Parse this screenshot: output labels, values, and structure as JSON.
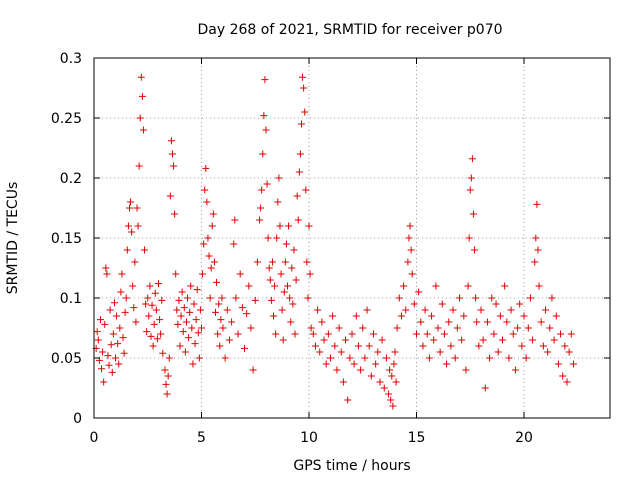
{
  "chart_data": {
    "type": "scatter",
    "title": "Day 268 of 2021, SRMTID for receiver p070",
    "xlabel": "GPS time / hours",
    "ylabel": "SRMTID / TECUs",
    "xlim": [
      0,
      24
    ],
    "ylim": [
      0,
      0.3
    ],
    "x_ticks": [
      "0",
      "5",
      "10",
      "15",
      "20"
    ],
    "y_ticks": [
      "0",
      "0.05",
      "0.1",
      "0.15",
      "0.2",
      "0.25",
      "0.3"
    ],
    "grid": true,
    "marker": "+",
    "series": [
      {
        "name": "SRMTID",
        "color": "#e00000",
        "points": [
          [
            0.1,
            0.058
          ],
          [
            0.15,
            0.072
          ],
          [
            0.2,
            0.065
          ],
          [
            0.25,
            0.048
          ],
          [
            0.3,
            0.082
          ],
          [
            0.35,
            0.041
          ],
          [
            0.4,
            0.055
          ],
          [
            0.45,
            0.03
          ],
          [
            0.5,
            0.078
          ],
          [
            0.55,
            0.125
          ],
          [
            0.6,
            0.12
          ],
          [
            0.65,
            0.052
          ],
          [
            0.7,
            0.044
          ],
          [
            0.75,
            0.09
          ],
          [
            0.8,
            0.061
          ],
          [
            0.85,
            0.038
          ],
          [
            0.9,
            0.07
          ],
          [
            0.95,
            0.096
          ],
          [
            1.0,
            0.05
          ],
          [
            1.05,
            0.085
          ],
          [
            1.1,
            0.062
          ],
          [
            1.15,
            0.045
          ],
          [
            1.2,
            0.075
          ],
          [
            1.25,
            0.105
          ],
          [
            1.3,
            0.12
          ],
          [
            1.35,
            0.067
          ],
          [
            1.4,
            0.054
          ],
          [
            1.45,
            0.088
          ],
          [
            1.5,
            0.1
          ],
          [
            1.55,
            0.14
          ],
          [
            1.6,
            0.16
          ],
          [
            1.65,
            0.175
          ],
          [
            1.7,
            0.18
          ],
          [
            1.75,
            0.155
          ],
          [
            1.8,
            0.11
          ],
          [
            1.85,
            0.092
          ],
          [
            1.9,
            0.13
          ],
          [
            1.95,
            0.08
          ],
          [
            2.0,
            0.175
          ],
          [
            2.05,
            0.16
          ],
          [
            2.1,
            0.21
          ],
          [
            2.15,
            0.25
          ],
          [
            2.2,
            0.284
          ],
          [
            2.25,
            0.268
          ],
          [
            2.3,
            0.24
          ],
          [
            2.35,
            0.14
          ],
          [
            2.4,
            0.095
          ],
          [
            2.45,
            0.072
          ],
          [
            2.5,
            0.1
          ],
          [
            2.55,
            0.085
          ],
          [
            2.6,
            0.11
          ],
          [
            2.65,
            0.068
          ],
          [
            2.7,
            0.094
          ],
          [
            2.75,
            0.06
          ],
          [
            2.8,
            0.078
          ],
          [
            2.85,
            0.104
          ],
          [
            2.9,
            0.09
          ],
          [
            2.95,
            0.066
          ],
          [
            3.0,
            0.112
          ],
          [
            3.05,
            0.082
          ],
          [
            3.1,
            0.07
          ],
          [
            3.15,
            0.098
          ],
          [
            3.2,
            0.054
          ],
          [
            3.3,
            0.04
          ],
          [
            3.35,
            0.028
          ],
          [
            3.4,
            0.02
          ],
          [
            3.45,
            0.035
          ],
          [
            3.5,
            0.05
          ],
          [
            3.55,
            0.185
          ],
          [
            3.6,
            0.231
          ],
          [
            3.65,
            0.22
          ],
          [
            3.7,
            0.21
          ],
          [
            3.75,
            0.17
          ],
          [
            3.8,
            0.12
          ],
          [
            3.85,
            0.09
          ],
          [
            3.9,
            0.078
          ],
          [
            3.95,
            0.098
          ],
          [
            4.0,
            0.06
          ],
          [
            4.05,
            0.085
          ],
          [
            4.1,
            0.105
          ],
          [
            4.15,
            0.072
          ],
          [
            4.2,
            0.092
          ],
          [
            4.25,
            0.055
          ],
          [
            4.3,
            0.08
          ],
          [
            4.35,
            0.1
          ],
          [
            4.4,
            0.067
          ],
          [
            4.45,
            0.088
          ],
          [
            4.5,
            0.11
          ],
          [
            4.55,
            0.075
          ],
          [
            4.6,
            0.045
          ],
          [
            4.65,
            0.095
          ],
          [
            4.7,
            0.062
          ],
          [
            4.75,
            0.082
          ],
          [
            4.8,
            0.107
          ],
          [
            4.85,
            0.071
          ],
          [
            4.9,
            0.05
          ],
          [
            4.95,
            0.09
          ],
          [
            5.0,
            0.075
          ],
          [
            5.05,
            0.12
          ],
          [
            5.1,
            0.145
          ],
          [
            5.15,
            0.19
          ],
          [
            5.2,
            0.208
          ],
          [
            5.25,
            0.18
          ],
          [
            5.3,
            0.15
          ],
          [
            5.35,
            0.135
          ],
          [
            5.4,
            0.1
          ],
          [
            5.45,
            0.125
          ],
          [
            5.5,
            0.16
          ],
          [
            5.55,
            0.17
          ],
          [
            5.6,
            0.13
          ],
          [
            5.65,
            0.088
          ],
          [
            5.7,
            0.113
          ],
          [
            5.75,
            0.07
          ],
          [
            5.8,
            0.095
          ],
          [
            5.85,
            0.06
          ],
          [
            5.9,
            0.082
          ],
          [
            5.95,
            0.1
          ],
          [
            6.0,
            0.075
          ],
          [
            6.1,
            0.05
          ],
          [
            6.2,
            0.09
          ],
          [
            6.3,
            0.065
          ],
          [
            6.4,
            0.08
          ],
          [
            6.5,
            0.145
          ],
          [
            6.55,
            0.165
          ],
          [
            6.6,
            0.1
          ],
          [
            6.7,
            0.07
          ],
          [
            6.8,
            0.12
          ],
          [
            6.9,
            0.092
          ],
          [
            7.0,
            0.058
          ],
          [
            7.1,
            0.087
          ],
          [
            7.2,
            0.11
          ],
          [
            7.3,
            0.075
          ],
          [
            7.4,
            0.04
          ],
          [
            7.5,
            0.098
          ],
          [
            7.6,
            0.13
          ],
          [
            7.7,
            0.165
          ],
          [
            7.75,
            0.175
          ],
          [
            7.8,
            0.19
          ],
          [
            7.85,
            0.22
          ],
          [
            7.9,
            0.252
          ],
          [
            7.95,
            0.282
          ],
          [
            8.0,
            0.24
          ],
          [
            8.05,
            0.195
          ],
          [
            8.1,
            0.15
          ],
          [
            8.15,
            0.125
          ],
          [
            8.2,
            0.115
          ],
          [
            8.25,
            0.098
          ],
          [
            8.3,
            0.13
          ],
          [
            8.35,
            0.085
          ],
          [
            8.4,
            0.11
          ],
          [
            8.45,
            0.07
          ],
          [
            8.5,
            0.15
          ],
          [
            8.55,
            0.18
          ],
          [
            8.6,
            0.2
          ],
          [
            8.65,
            0.16
          ],
          [
            8.7,
            0.12
          ],
          [
            8.75,
            0.09
          ],
          [
            8.8,
            0.065
          ],
          [
            8.85,
            0.105
          ],
          [
            8.9,
            0.13
          ],
          [
            8.95,
            0.145
          ],
          [
            9.0,
            0.11
          ],
          [
            9.05,
            0.16
          ],
          [
            9.1,
            0.1
          ],
          [
            9.15,
            0.08
          ],
          [
            9.2,
            0.125
          ],
          [
            9.25,
            0.095
          ],
          [
            9.3,
            0.14
          ],
          [
            9.35,
            0.07
          ],
          [
            9.4,
            0.115
          ],
          [
            9.45,
            0.185
          ],
          [
            9.5,
            0.165
          ],
          [
            9.55,
            0.205
          ],
          [
            9.6,
            0.22
          ],
          [
            9.65,
            0.245
          ],
          [
            9.7,
            0.284
          ],
          [
            9.75,
            0.275
          ],
          [
            9.8,
            0.255
          ],
          [
            9.85,
            0.19
          ],
          [
            9.9,
            0.13
          ],
          [
            9.95,
            0.1
          ],
          [
            10.0,
            0.16
          ],
          [
            10.05,
            0.12
          ],
          [
            10.1,
            0.075
          ],
          [
            10.2,
            0.07
          ],
          [
            10.3,
            0.06
          ],
          [
            10.4,
            0.09
          ],
          [
            10.5,
            0.055
          ],
          [
            10.6,
            0.08
          ],
          [
            10.7,
            0.065
          ],
          [
            10.8,
            0.045
          ],
          [
            10.9,
            0.07
          ],
          [
            11.0,
            0.05
          ],
          [
            11.1,
            0.085
          ],
          [
            11.2,
            0.06
          ],
          [
            11.3,
            0.04
          ],
          [
            11.4,
            0.075
          ],
          [
            11.5,
            0.055
          ],
          [
            11.6,
            0.03
          ],
          [
            11.7,
            0.065
          ],
          [
            11.8,
            0.015
          ],
          [
            11.9,
            0.05
          ],
          [
            12.0,
            0.07
          ],
          [
            12.1,
            0.045
          ],
          [
            12.2,
            0.085
          ],
          [
            12.3,
            0.06
          ],
          [
            12.4,
            0.04
          ],
          [
            12.5,
            0.075
          ],
          [
            12.6,
            0.05
          ],
          [
            12.7,
            0.09
          ],
          [
            12.8,
            0.06
          ],
          [
            12.9,
            0.035
          ],
          [
            13.0,
            0.07
          ],
          [
            13.1,
            0.045
          ],
          [
            13.2,
            0.055
          ],
          [
            13.3,
            0.03
          ],
          [
            13.4,
            0.065
          ],
          [
            13.5,
            0.025
          ],
          [
            13.6,
            0.05
          ],
          [
            13.7,
            0.02
          ],
          [
            13.75,
            0.04
          ],
          [
            13.8,
            0.015
          ],
          [
            13.85,
            0.035
          ],
          [
            13.9,
            0.01
          ],
          [
            13.95,
            0.045
          ],
          [
            14.0,
            0.055
          ],
          [
            14.05,
            0.03
          ],
          [
            14.1,
            0.075
          ],
          [
            14.2,
            0.1
          ],
          [
            14.3,
            0.085
          ],
          [
            14.4,
            0.11
          ],
          [
            14.5,
            0.09
          ],
          [
            14.6,
            0.13
          ],
          [
            14.65,
            0.15
          ],
          [
            14.7,
            0.16
          ],
          [
            14.75,
            0.14
          ],
          [
            14.8,
            0.12
          ],
          [
            14.9,
            0.095
          ],
          [
            15.0,
            0.07
          ],
          [
            15.1,
            0.105
          ],
          [
            15.2,
            0.08
          ],
          [
            15.3,
            0.06
          ],
          [
            15.4,
            0.09
          ],
          [
            15.5,
            0.07
          ],
          [
            15.6,
            0.05
          ],
          [
            15.7,
            0.085
          ],
          [
            15.8,
            0.065
          ],
          [
            15.9,
            0.11
          ],
          [
            16.0,
            0.075
          ],
          [
            16.1,
            0.055
          ],
          [
            16.2,
            0.095
          ],
          [
            16.3,
            0.07
          ],
          [
            16.4,
            0.045
          ],
          [
            16.5,
            0.08
          ],
          [
            16.6,
            0.06
          ],
          [
            16.7,
            0.09
          ],
          [
            16.8,
            0.05
          ],
          [
            16.9,
            0.075
          ],
          [
            17.0,
            0.1
          ],
          [
            17.1,
            0.065
          ],
          [
            17.2,
            0.085
          ],
          [
            17.3,
            0.04
          ],
          [
            17.4,
            0.11
          ],
          [
            17.45,
            0.15
          ],
          [
            17.5,
            0.19
          ],
          [
            17.55,
            0.2
          ],
          [
            17.6,
            0.216
          ],
          [
            17.65,
            0.17
          ],
          [
            17.7,
            0.14
          ],
          [
            17.75,
            0.1
          ],
          [
            17.8,
            0.08
          ],
          [
            17.9,
            0.06
          ],
          [
            18.0,
            0.09
          ],
          [
            18.1,
            0.065
          ],
          [
            18.2,
            0.025
          ],
          [
            18.3,
            0.08
          ],
          [
            18.4,
            0.05
          ],
          [
            18.5,
            0.1
          ],
          [
            18.6,
            0.07
          ],
          [
            18.7,
            0.095
          ],
          [
            18.8,
            0.055
          ],
          [
            18.9,
            0.085
          ],
          [
            19.0,
            0.065
          ],
          [
            19.1,
            0.11
          ],
          [
            19.2,
            0.08
          ],
          [
            19.3,
            0.05
          ],
          [
            19.4,
            0.09
          ],
          [
            19.5,
            0.07
          ],
          [
            19.6,
            0.04
          ],
          [
            19.7,
            0.075
          ],
          [
            19.8,
            0.095
          ],
          [
            19.9,
            0.06
          ],
          [
            20.0,
            0.085
          ],
          [
            20.1,
            0.05
          ],
          [
            20.2,
            0.075
          ],
          [
            20.3,
            0.1
          ],
          [
            20.4,
            0.065
          ],
          [
            20.5,
            0.13
          ],
          [
            20.55,
            0.15
          ],
          [
            20.6,
            0.178
          ],
          [
            20.65,
            0.14
          ],
          [
            20.7,
            0.11
          ],
          [
            20.8,
            0.08
          ],
          [
            20.9,
            0.06
          ],
          [
            21.0,
            0.09
          ],
          [
            21.1,
            0.055
          ],
          [
            21.2,
            0.075
          ],
          [
            21.3,
            0.1
          ],
          [
            21.4,
            0.065
          ],
          [
            21.5,
            0.085
          ],
          [
            21.6,
            0.045
          ],
          [
            21.7,
            0.07
          ],
          [
            21.8,
            0.035
          ],
          [
            21.9,
            0.06
          ],
          [
            22.0,
            0.03
          ],
          [
            22.1,
            0.055
          ],
          [
            22.2,
            0.07
          ],
          [
            22.3,
            0.045
          ]
        ]
      }
    ]
  }
}
